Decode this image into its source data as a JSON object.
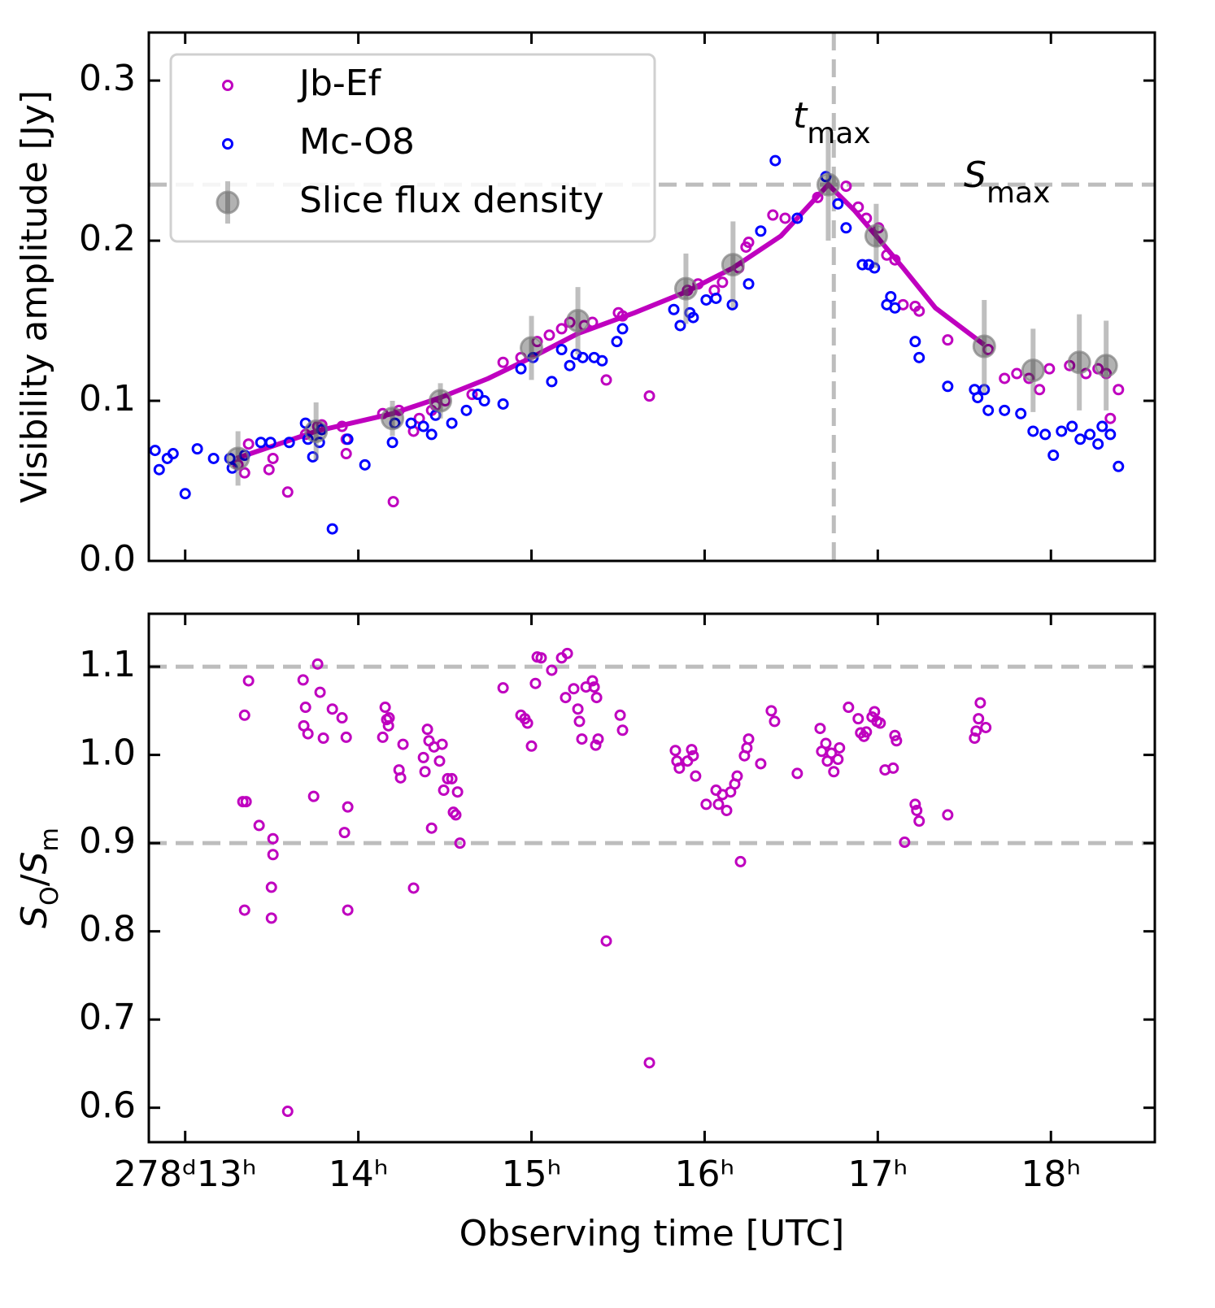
{
  "chart_data": [
    {
      "type": "scatter",
      "ylabel": "Visibility amplitude [Jy]",
      "xlim": [
        12.79,
        18.6
      ],
      "ylim": [
        0,
        0.33
      ],
      "xticks": [
        13,
        14,
        15,
        16,
        17,
        18
      ],
      "xtick_labels": false,
      "yticks": [
        {
          "value": 0,
          "label": "0.0"
        },
        0.1,
        0.2,
        0.3
      ],
      "legend": "upper left",
      "vlines": [
        16.746
      ],
      "hlines": [
        0.235
      ],
      "annotations": [
        [
          {
            "t": "t",
            "italic": true
          },
          {
            "t": "max",
            "sub": true
          }
        ],
        [
          {
            "t": "S",
            "italic": true
          },
          {
            "t": "max",
            "sub": true
          }
        ]
      ],
      "series": [
        {
          "name": "Jb-Ef",
          "color": "#bf00bf",
          "style": "ring",
          "x": [
            13.305,
            13.343,
            13.366,
            13.484,
            13.507,
            13.592,
            13.695,
            13.765,
            13.789,
            13.906,
            13.93,
            13.93,
            14.141,
            14.202,
            14.235,
            14.319,
            14.352,
            14.423,
            14.446,
            14.502,
            14.657,
            14.836,
            14.939,
            15.033,
            15.103,
            15.174,
            15.221,
            15.305,
            15.352,
            15.432,
            15.502,
            15.526,
            15.681,
            15.901,
            15.962,
            16.056,
            16.103,
            16.197,
            16.239,
            16.254,
            16.394,
            16.465,
            16.653,
            16.817,
            16.887,
            16.934,
            17.005,
            17.052,
            17.099,
            17.146,
            17.216,
            17.239,
            17.404,
            17.638,
            17.732,
            17.803,
            17.873,
            17.934,
            17.991,
            18.108,
            18.202,
            18.272,
            18.319,
            18.343,
            18.39
          ],
          "values": [
            0.06,
            0.055,
            0.073,
            0.057,
            0.064,
            0.043,
            0.079,
            0.084,
            0.085,
            0.084,
            0.076,
            0.067,
            0.092,
            0.037,
            0.094,
            0.081,
            0.089,
            0.094,
            0.097,
            0.1,
            0.104,
            0.124,
            0.127,
            0.137,
            0.141,
            0.145,
            0.149,
            0.147,
            0.149,
            0.113,
            0.155,
            0.153,
            0.103,
            0.169,
            0.173,
            0.169,
            0.174,
            0.183,
            0.196,
            0.199,
            0.216,
            0.214,
            0.227,
            0.234,
            0.221,
            0.214,
            0.208,
            0.191,
            0.188,
            0.16,
            0.159,
            0.156,
            0.138,
            0.132,
            0.114,
            0.117,
            0.114,
            0.107,
            0.12,
            0.122,
            0.117,
            0.12,
            0.117,
            0.089,
            0.107
          ]
        },
        {
          "name": "Mc-O8",
          "color": "#0000ff",
          "style": "ring",
          "x": [
            12.826,
            12.85,
            12.897,
            12.93,
            13.0,
            13.07,
            13.164,
            13.258,
            13.272,
            13.343,
            13.437,
            13.493,
            13.601,
            13.695,
            13.709,
            13.737,
            13.775,
            13.789,
            13.85,
            13.939,
            14.038,
            14.197,
            14.211,
            14.305,
            14.376,
            14.423,
            14.446,
            14.54,
            14.624,
            14.69,
            14.728,
            14.836,
            14.939,
            15.009,
            15.117,
            15.174,
            15.221,
            15.258,
            15.296,
            15.362,
            15.408,
            15.493,
            15.526,
            15.822,
            15.859,
            15.915,
            15.934,
            16.009,
            16.066,
            16.16,
            16.254,
            16.324,
            16.408,
            16.535,
            16.7,
            16.77,
            16.817,
            16.911,
            16.948,
            16.981,
            17.052,
            17.075,
            17.099,
            17.216,
            17.239,
            17.404,
            17.559,
            17.577,
            17.615,
            17.638,
            17.732,
            17.826,
            17.897,
            17.967,
            18.014,
            18.061,
            18.122,
            18.169,
            18.225,
            18.272,
            18.296,
            18.343,
            18.39
          ],
          "values": [
            0.069,
            0.057,
            0.064,
            0.067,
            0.042,
            0.07,
            0.064,
            0.064,
            0.058,
            0.066,
            0.074,
            0.074,
            0.074,
            0.086,
            0.076,
            0.065,
            0.074,
            0.082,
            0.02,
            0.076,
            0.06,
            0.074,
            0.086,
            0.086,
            0.084,
            0.079,
            0.091,
            0.086,
            0.094,
            0.104,
            0.1,
            0.098,
            0.12,
            0.127,
            0.112,
            0.132,
            0.122,
            0.129,
            0.127,
            0.127,
            0.125,
            0.137,
            0.145,
            0.157,
            0.147,
            0.155,
            0.152,
            0.163,
            0.164,
            0.16,
            0.173,
            0.206,
            0.25,
            0.214,
            0.24,
            0.223,
            0.208,
            0.185,
            0.185,
            0.183,
            0.16,
            0.165,
            0.158,
            0.137,
            0.127,
            0.109,
            0.107,
            0.102,
            0.107,
            0.094,
            0.094,
            0.092,
            0.081,
            0.079,
            0.066,
            0.081,
            0.084,
            0.076,
            0.079,
            0.073,
            0.084,
            0.079,
            0.059
          ]
        },
        {
          "name": "Slice flux density",
          "color": "#808080",
          "style": "errorbar",
          "x": [
            13.305,
            13.756,
            14.197,
            14.474,
            15.0,
            15.268,
            15.892,
            16.164,
            16.714,
            16.991,
            17.615,
            17.897,
            18.164,
            18.319
          ],
          "values": [
            0.064,
            0.081,
            0.089,
            0.1,
            0.133,
            0.15,
            0.17,
            0.185,
            0.235,
            0.203,
            0.134,
            0.119,
            0.124,
            0.122
          ],
          "errors": [
            0.017,
            0.018,
            0.011,
            0.011,
            0.02,
            0.021,
            0.022,
            0.027,
            0.035,
            0.02,
            0.029,
            0.026,
            0.03,
            0.028
          ]
        },
        {
          "color": "#bf00bf",
          "style": "line",
          "x": [
            13.296,
            13.756,
            14.197,
            14.474,
            14.751,
            15.0,
            15.268,
            15.596,
            15.892,
            16.164,
            16.441,
            16.714,
            16.864,
            16.991,
            17.146,
            17.333,
            17.615
          ],
          "values": [
            0.064,
            0.081,
            0.092,
            0.102,
            0.114,
            0.127,
            0.142,
            0.155,
            0.168,
            0.183,
            0.203,
            0.235,
            0.219,
            0.203,
            0.183,
            0.158,
            0.135
          ]
        }
      ]
    },
    {
      "type": "scatter",
      "ylabel": [
        {
          "t": "S",
          "italic": true
        },
        {
          "t": "O",
          "sub": true
        },
        {
          "t": "/"
        },
        {
          "t": "S",
          "italic": true
        },
        {
          "t": "m",
          "sub": true
        }
      ],
      "xlabel": "Observing time [UTC]",
      "xlim": [
        12.79,
        18.6
      ],
      "ylim": [
        0.561,
        1.16
      ],
      "xticks": [
        {
          "value": 13,
          "label": "278ᵈ13ʰ"
        },
        {
          "value": 14,
          "label": "14ʰ"
        },
        {
          "value": 15,
          "label": "15ʰ"
        },
        {
          "value": 16,
          "label": "16ʰ"
        },
        {
          "value": 17,
          "label": "17ʰ"
        },
        {
          "value": 18,
          "label": "18ʰ"
        }
      ],
      "yticks": [
        0.6,
        0.7,
        0.8,
        0.9,
        {
          "value": 1,
          "label": "1.0"
        },
        1.1
      ],
      "hlines": [
        0.9,
        1.1
      ],
      "series": [
        {
          "color": "#bf00bf",
          "style": "ring",
          "x": [
            13.333,
            13.343,
            13.352,
            13.366,
            13.343,
            13.427,
            13.498,
            13.507,
            13.507,
            13.498,
            13.592,
            13.681,
            13.695,
            13.685,
            13.709,
            13.742,
            13.765,
            13.779,
            13.798,
            13.85,
            13.906,
            13.92,
            13.93,
            13.939,
            13.939,
            14.141,
            14.155,
            14.164,
            14.178,
            14.174,
            14.235,
            14.244,
            14.258,
            14.319,
            14.376,
            14.385,
            14.399,
            14.408,
            14.423,
            14.437,
            14.469,
            14.484,
            14.493,
            14.516,
            14.54,
            14.549,
            14.563,
            14.573,
            14.587,
            14.836,
            14.939,
            14.962,
            14.977,
            15.0,
            15.023,
            15.033,
            15.056,
            15.117,
            15.174,
            15.207,
            15.197,
            15.244,
            15.268,
            15.277,
            15.291,
            15.315,
            15.352,
            15.362,
            15.376,
            15.371,
            15.385,
            15.432,
            15.512,
            15.526,
            15.681,
            15.831,
            15.84,
            15.854,
            15.901,
            15.925,
            15.934,
            15.948,
            16.009,
            16.066,
            16.08,
            16.103,
            16.127,
            16.15,
            16.174,
            16.188,
            16.207,
            16.23,
            16.254,
            16.244,
            16.324,
            16.385,
            16.404,
            16.535,
            16.667,
            16.676,
            16.7,
            16.709,
            16.732,
            16.746,
            16.77,
            16.779,
            16.831,
            16.887,
            16.901,
            16.92,
            16.934,
            16.967,
            16.981,
            16.995,
            17.014,
            17.042,
            17.089,
            17.099,
            17.108,
            17.155,
            17.216,
            17.225,
            17.239,
            17.404,
            17.559,
            17.568,
            17.582,
            17.592,
            17.624
          ],
          "values": [
            0.947,
            1.045,
            0.947,
            1.084,
            0.824,
            0.92,
            0.85,
            0.887,
            0.905,
            0.815,
            0.596,
            1.085,
            1.054,
            1.033,
            1.024,
            0.953,
            1.103,
            1.071,
            1.019,
            1.052,
            1.042,
            0.912,
            1.02,
            0.941,
            0.824,
            1.02,
            1.054,
            1.04,
            1.042,
            1.033,
            0.983,
            0.974,
            1.012,
            0.849,
            0.997,
            0.981,
            1.029,
            1.016,
            0.917,
            1.009,
            0.993,
            1.012,
            0.96,
            0.973,
            0.973,
            0.935,
            0.932,
            0.958,
            0.9,
            1.076,
            1.045,
            1.041,
            1.036,
            1.01,
            1.081,
            1.111,
            1.11,
            1.096,
            1.11,
            1.115,
            1.065,
            1.075,
            1.052,
            1.038,
            1.018,
            1.077,
            1.084,
            1.077,
            1.065,
            1.011,
            1.018,
            0.789,
            1.045,
            1.028,
            0.651,
            1.005,
            0.993,
            0.985,
            0.993,
            1.006,
            0.999,
            0.976,
            0.944,
            0.96,
            0.944,
            0.955,
            0.937,
            0.958,
            0.967,
            0.976,
            0.879,
            0.999,
            1.018,
            1.008,
            0.99,
            1.05,
            1.038,
            0.979,
            1.03,
            1.004,
            1.013,
            0.993,
            1.002,
            0.981,
            0.995,
            1.008,
            1.054,
            1.041,
            1.025,
            1.021,
            1.026,
            1.043,
            1.049,
            1.038,
            1.036,
            0.983,
            0.985,
            1.022,
            1.016,
            0.901,
            0.944,
            0.937,
            0.925,
            0.932,
            1.019,
            1.027,
            1.041,
            1.059,
            1.031
          ]
        }
      ]
    }
  ]
}
